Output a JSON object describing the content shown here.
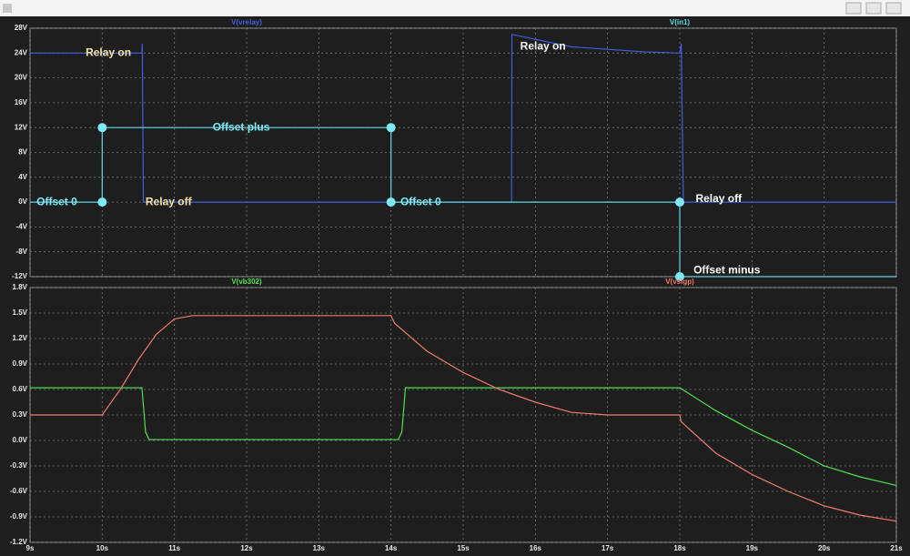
{
  "chart_data": [
    {
      "type": "line",
      "xlim": [
        9,
        21
      ],
      "xticks": [
        9,
        10,
        11,
        12,
        13,
        14,
        15,
        16,
        17,
        18,
        19,
        20,
        21
      ],
      "ylim": [
        -12,
        28
      ],
      "yticks": [
        {
          "value": 28,
          "label": "28V"
        },
        {
          "value": 24,
          "label": "24V"
        },
        {
          "value": 20,
          "label": "20V"
        },
        {
          "value": 16,
          "label": "16V"
        },
        {
          "value": 12,
          "label": "12V"
        },
        {
          "value": 8,
          "label": "8V"
        },
        {
          "value": 4,
          "label": "4V"
        },
        {
          "value": 0,
          "label": "0V"
        },
        {
          "value": -4,
          "label": "-4V"
        },
        {
          "value": -8,
          "label": "-8V"
        },
        {
          "value": -12,
          "label": "-12V"
        }
      ],
      "grid": true,
      "series": [
        {
          "name": "V(vrelay)",
          "color": "#3f5fe0",
          "x": [
            9,
            10.55,
            10.555,
            10.57,
            15.67,
            15.675,
            16.5,
            17.5,
            18.0,
            18.02,
            18.05,
            21
          ],
          "values": [
            24,
            24,
            25.5,
            0,
            0,
            27,
            25,
            24.2,
            24,
            25.5,
            0,
            0
          ]
        },
        {
          "name": "V(in1)",
          "color": "#5fd8e8",
          "x": [
            9,
            10,
            10,
            14,
            14,
            18,
            18,
            21
          ],
          "values": [
            0,
            0,
            12,
            12,
            0,
            0,
            -12,
            -12
          ]
        }
      ],
      "markers": {
        "color": "#7fe8f5",
        "x": [
          10,
          14,
          10,
          14,
          18,
          18
        ],
        "y": [
          12,
          12,
          0,
          0,
          0,
          -12
        ]
      },
      "annotations": [
        {
          "text": "Relay on",
          "x": 9.77,
          "y": 24,
          "color": "#f3e3a0"
        },
        {
          "text": "Offset plus",
          "x": 11.53,
          "y": 12,
          "color": "#7fe8f5"
        },
        {
          "text": "Offset 0",
          "x": 9.09,
          "y": 0,
          "color": "#7fe8f5"
        },
        {
          "text": "Relay off",
          "x": 10.6,
          "y": 0,
          "color": "#f3e3a0"
        },
        {
          "text": "Offset 0",
          "x": 14.13,
          "y": 0,
          "color": "#7fe8f5"
        },
        {
          "text": "Relay on",
          "x": 15.79,
          "y": 25,
          "color": "#ffffff"
        },
        {
          "text": "Relay off",
          "x": 18.22,
          "y": 0.5,
          "color": "#ffffff"
        },
        {
          "text": "Offset minus",
          "x": 18.19,
          "y": -11,
          "color": "#ffffff"
        }
      ]
    },
    {
      "type": "line",
      "xlim": [
        9,
        21
      ],
      "xticks": [
        {
          "value": 9,
          "label": "9s"
        },
        {
          "value": 10,
          "label": "10s"
        },
        {
          "value": 11,
          "label": "11s"
        },
        {
          "value": 12,
          "label": "12s"
        },
        {
          "value": 13,
          "label": "13s"
        },
        {
          "value": 14,
          "label": "14s"
        },
        {
          "value": 15,
          "label": "15s"
        },
        {
          "value": 16,
          "label": "16s"
        },
        {
          "value": 17,
          "label": "17s"
        },
        {
          "value": 18,
          "label": "18s"
        },
        {
          "value": 19,
          "label": "19s"
        },
        {
          "value": 20,
          "label": "20s"
        },
        {
          "value": 21,
          "label": "21s"
        }
      ],
      "ylim": [
        -1.2,
        1.8
      ],
      "yticks": [
        {
          "value": 1.8,
          "label": "1.8V"
        },
        {
          "value": 1.5,
          "label": "1.5V"
        },
        {
          "value": 1.2,
          "label": "1.2V"
        },
        {
          "value": 0.9,
          "label": "0.9V"
        },
        {
          "value": 0.6,
          "label": "0.6V"
        },
        {
          "value": 0.3,
          "label": "0.3V"
        },
        {
          "value": 0,
          "label": "0.0V"
        },
        {
          "value": -0.3,
          "label": "-0.3V"
        },
        {
          "value": -0.6,
          "label": "-0.6V"
        },
        {
          "value": -0.9,
          "label": "-0.9V"
        },
        {
          "value": -1.2,
          "label": "-1.2V"
        }
      ],
      "grid": true,
      "series": [
        {
          "name": "V(vb302)",
          "color": "#4fe04f",
          "x": [
            9,
            10.55,
            10.6,
            10.65,
            14.1,
            14.15,
            14.2,
            18,
            18.5,
            19,
            19.5,
            20,
            20.5,
            21
          ],
          "values": [
            0.62,
            0.62,
            0.1,
            0.01,
            0.01,
            0.1,
            0.62,
            0.62,
            0.35,
            0.12,
            -0.08,
            -0.3,
            -0.43,
            -0.53
          ]
        },
        {
          "name": "V(vsigp)",
          "color": "#f07a6a",
          "x": [
            9,
            10,
            10.25,
            10.5,
            10.75,
            11,
            11.25,
            14,
            14.05,
            14.5,
            15,
            15.5,
            16,
            16.5,
            17,
            18,
            18.02,
            18.5,
            19,
            19.5,
            20,
            20.5,
            21
          ],
          "values": [
            0.3,
            0.3,
            0.6,
            0.95,
            1.25,
            1.43,
            1.47,
            1.47,
            1.38,
            1.05,
            0.8,
            0.6,
            0.45,
            0.33,
            0.3,
            0.3,
            0.22,
            -0.15,
            -0.4,
            -0.6,
            -0.77,
            -0.88,
            -0.95
          ]
        }
      ]
    }
  ]
}
